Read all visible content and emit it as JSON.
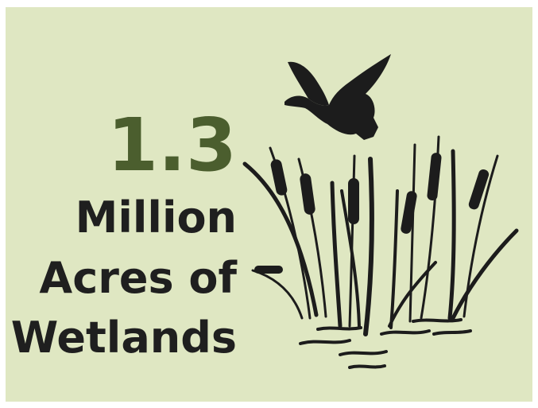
{
  "stat": {
    "value": "1.3",
    "label_lines": [
      "Million",
      "Acres of",
      "Wetlands"
    ]
  }
}
